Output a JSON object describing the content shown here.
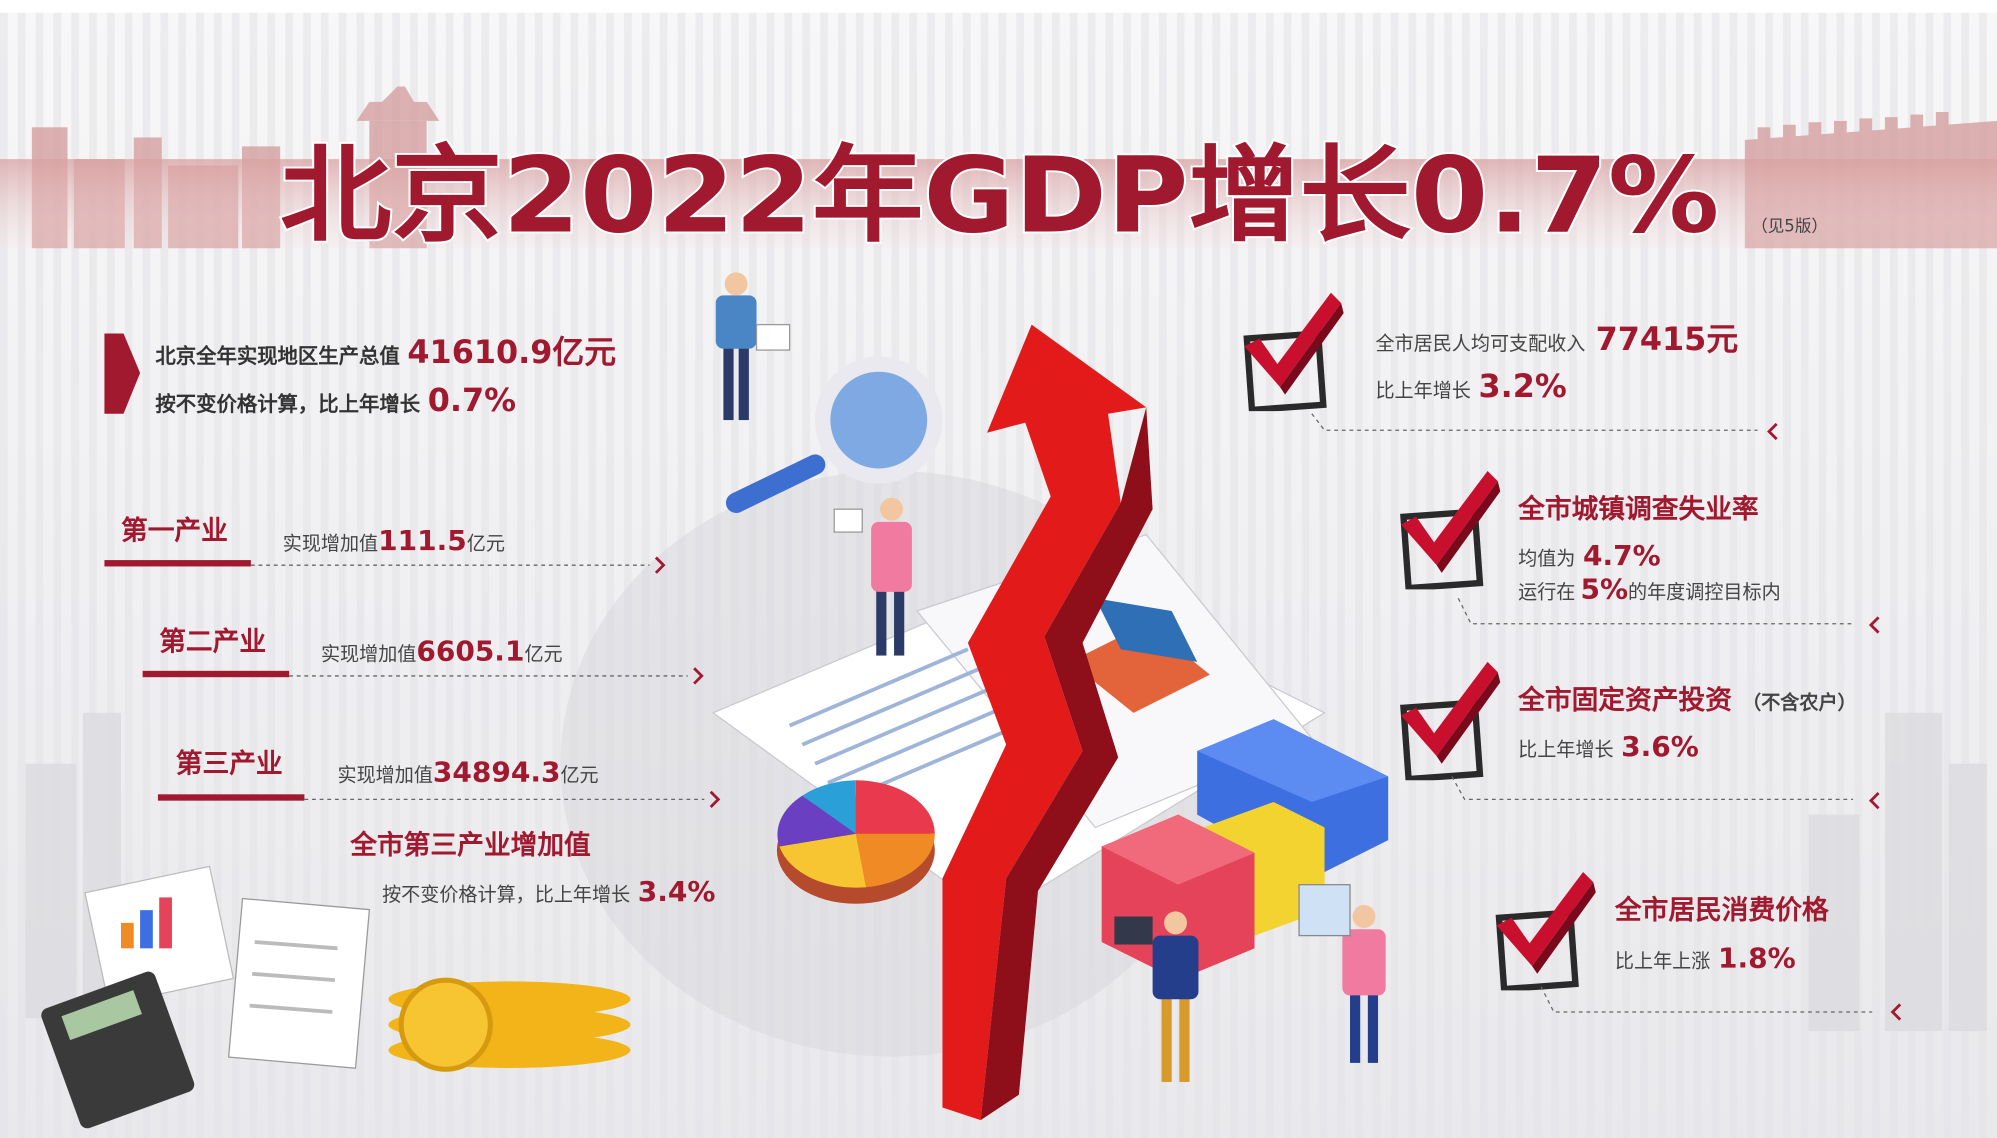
{
  "header": {
    "title": "北京2022年GDP增长0.7%",
    "note": "（见5版）"
  },
  "summary": {
    "lines": [
      {
        "text": "北京全年实现地区生产总值",
        "value": "41610.9亿元"
      },
      {
        "text": "按不变价格计算，比上年增长",
        "value": "0.7%"
      }
    ]
  },
  "industries": [
    {
      "name": "第一产业",
      "text": "实现增加值",
      "value": "111.5",
      "unit": "亿元"
    },
    {
      "name": "第二产业",
      "text": "实现增加值",
      "value": "6605.1",
      "unit": "亿元"
    },
    {
      "name": "第三产业",
      "text": "实现增加值",
      "value": "34894.3",
      "unit": "亿元"
    }
  ],
  "tertiary": {
    "title": "全市第三产业增加值",
    "text": "按不变价格计算，比上年增长",
    "value": "3.4%"
  },
  "indicators": [
    {
      "lines": [
        {
          "text": "全市居民人均可支配收入",
          "value": "77415元"
        },
        {
          "text": "比上年增长",
          "value": "3.2%"
        }
      ]
    },
    {
      "title": "全市城镇调查失业率",
      "lines": [
        {
          "text": "均值为",
          "value": "4.7%"
        },
        {
          "text": "运行在",
          "value": "5%",
          "suffix": "的年度调控目标内"
        }
      ]
    },
    {
      "title": "全市固定资产投资",
      "note": "（不含农户）",
      "lines": [
        {
          "text": "比上年增长",
          "value": "3.6%"
        }
      ]
    },
    {
      "title": "全市居民消费价格",
      "lines": [
        {
          "text": "比上年上涨",
          "value": "1.8%"
        }
      ]
    }
  ]
}
